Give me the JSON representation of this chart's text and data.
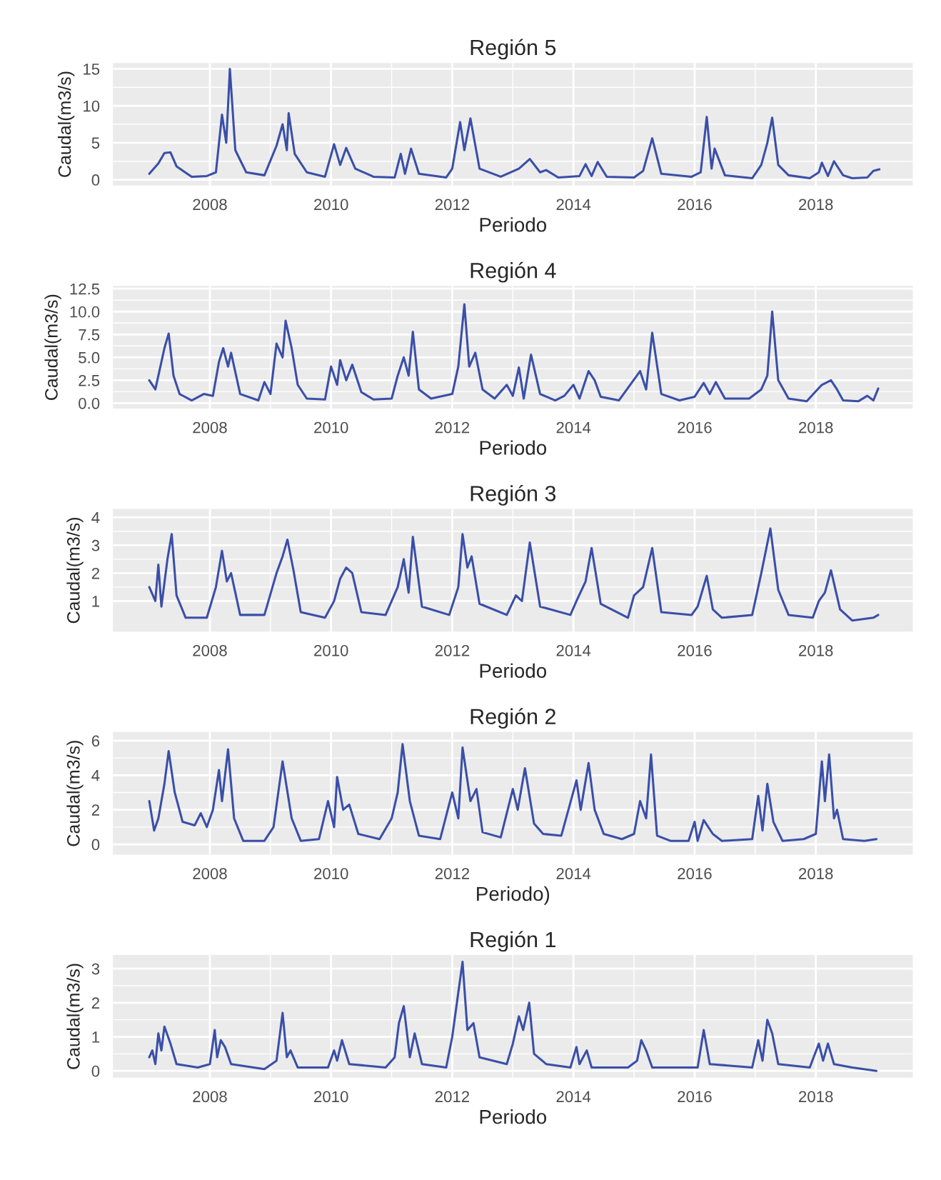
{
  "chart_data": [
    {
      "type": "line",
      "title": "Región 5",
      "xlabel": "Periodo",
      "ylabel": "Caudal(m3/s)",
      "xlim": [
        2006.4,
        2019.6
      ],
      "xticks": [
        2008,
        2010,
        2012,
        2014,
        2016,
        2018
      ],
      "ylim": [
        -0.8,
        15.8
      ],
      "yticks": [
        0,
        5,
        10,
        15
      ],
      "grid": true,
      "x": [
        2007.0,
        2007.15,
        2007.25,
        2007.35,
        2007.45,
        2007.7,
        2007.95,
        2008.1,
        2008.2,
        2008.27,
        2008.33,
        2008.42,
        2008.6,
        2008.9,
        2009.1,
        2009.2,
        2009.27,
        2009.3,
        2009.4,
        2009.6,
        2009.9,
        2010.05,
        2010.15,
        2010.25,
        2010.4,
        2010.7,
        2011.05,
        2011.15,
        2011.22,
        2011.32,
        2011.45,
        2011.9,
        2012.0,
        2012.13,
        2012.2,
        2012.3,
        2012.45,
        2012.8,
        2013.1,
        2013.28,
        2013.45,
        2013.55,
        2013.75,
        2014.1,
        2014.2,
        2014.3,
        2014.4,
        2014.55,
        2015.0,
        2015.15,
        2015.3,
        2015.45,
        2015.95,
        2016.1,
        2016.2,
        2016.28,
        2016.33,
        2016.5,
        2016.95,
        2017.1,
        2017.2,
        2017.28,
        2017.38,
        2017.55,
        2017.9,
        2018.05,
        2018.1,
        2018.2,
        2018.3,
        2018.45,
        2018.6,
        2018.85,
        2018.95,
        2019.05
      ],
      "series": [
        {
          "color": "#3a4fa8",
          "values": [
            0.8,
            2.2,
            3.6,
            3.7,
            1.8,
            0.4,
            0.5,
            1.0,
            8.8,
            5,
            15,
            4,
            1,
            0.6,
            4.6,
            7.5,
            4,
            9,
            3.5,
            1,
            0.4,
            4.8,
            2,
            4.3,
            1.5,
            0.4,
            0.3,
            3.5,
            0.8,
            4.2,
            0.8,
            0.3,
            1.5,
            7.8,
            4,
            8.3,
            1.5,
            0.4,
            1.5,
            2.8,
            1.0,
            1.3,
            0.3,
            0.5,
            2.1,
            0.5,
            2.4,
            0.4,
            0.3,
            1.2,
            5.6,
            0.8,
            0.4,
            1.0,
            8.5,
            1.5,
            4.2,
            0.6,
            0.2,
            2,
            5,
            8.4,
            2,
            0.6,
            0.2,
            1.0,
            2.3,
            0.5,
            2.5,
            0.6,
            0.2,
            0.3,
            1.2,
            1.4
          ]
        }
      ]
    },
    {
      "type": "line",
      "title": "Región 4",
      "xlabel": "Periodo",
      "ylabel": "Caudal(m3/s)",
      "xlim": [
        2006.4,
        2019.6
      ],
      "xticks": [
        2008,
        2010,
        2012,
        2014,
        2016,
        2018
      ],
      "ylim": [
        -0.6,
        12.8
      ],
      "yticks": [
        {
          "value": 0,
          "label": "0.0"
        },
        {
          "value": 2.5,
          "label": "2.5"
        },
        {
          "value": 5,
          "label": "5.0"
        },
        {
          "value": 7.5,
          "label": "7.5"
        },
        {
          "value": 10,
          "label": "10.0"
        },
        {
          "value": 12.5,
          "label": "12.5"
        }
      ],
      "grid": true,
      "x": [
        2007.0,
        2007.1,
        2007.2,
        2007.25,
        2007.32,
        2007.4,
        2007.5,
        2007.7,
        2007.9,
        2008.05,
        2008.15,
        2008.22,
        2008.3,
        2008.35,
        2008.5,
        2008.8,
        2008.9,
        2009.0,
        2009.1,
        2009.2,
        2009.25,
        2009.35,
        2009.45,
        2009.6,
        2009.9,
        2010.0,
        2010.1,
        2010.15,
        2010.25,
        2010.35,
        2010.5,
        2010.7,
        2011.0,
        2011.1,
        2011.2,
        2011.28,
        2011.35,
        2011.45,
        2011.65,
        2012.0,
        2012.1,
        2012.2,
        2012.28,
        2012.38,
        2012.5,
        2012.7,
        2012.9,
        2013.0,
        2013.1,
        2013.18,
        2013.3,
        2013.45,
        2013.7,
        2013.85,
        2014.0,
        2014.1,
        2014.25,
        2014.35,
        2014.45,
        2014.75,
        2015.1,
        2015.2,
        2015.3,
        2015.45,
        2015.75,
        2016.0,
        2016.15,
        2016.25,
        2016.35,
        2016.5,
        2016.9,
        2017.1,
        2017.2,
        2017.28,
        2017.38,
        2017.55,
        2017.85,
        2018.0,
        2018.1,
        2018.25,
        2018.35,
        2018.45,
        2018.7,
        2018.85,
        2018.95,
        2019.03
      ],
      "series": [
        {
          "color": "#3a4fa8",
          "values": [
            2.5,
            1.5,
            4.5,
            6,
            7.6,
            3,
            1.0,
            0.3,
            1.0,
            0.8,
            4.5,
            6,
            4,
            5.5,
            1.0,
            0.3,
            2.3,
            1,
            6.5,
            5,
            9,
            6,
            2,
            0.5,
            0.4,
            4,
            2,
            4.7,
            2.5,
            4.2,
            1.2,
            0.4,
            0.5,
            3,
            5,
            3,
            7.8,
            1.5,
            0.5,
            1,
            4,
            10.8,
            4,
            5.5,
            1.5,
            0.5,
            2.0,
            0.8,
            3.9,
            0.5,
            5.3,
            1,
            0.3,
            0.8,
            2.0,
            0.5,
            3.5,
            2.5,
            0.7,
            0.3,
            3.5,
            1.5,
            7.7,
            1,
            0.3,
            0.7,
            2.2,
            1.0,
            2.3,
            0.5,
            0.5,
            1.5,
            3,
            10,
            2.5,
            0.5,
            0.2,
            1.3,
            2.0,
            2.5,
            1.5,
            0.3,
            0.2,
            0.8,
            0.3,
            1.6
          ]
        }
      ]
    },
    {
      "type": "line",
      "title": "Región 3",
      "xlabel": "Periodo",
      "ylabel": "Caudal(m3/s)",
      "xlim": [
        2006.4,
        2019.6
      ],
      "xticks": [
        2008,
        2010,
        2012,
        2014,
        2016,
        2018
      ],
      "ylim": [
        -0.1,
        4.3
      ],
      "yticks": [
        1,
        2,
        3,
        4
      ],
      "grid": true,
      "x": [
        2007.0,
        2007.1,
        2007.15,
        2007.2,
        2007.3,
        2007.37,
        2007.45,
        2007.6,
        2007.95,
        2008.1,
        2008.2,
        2008.28,
        2008.35,
        2008.5,
        2008.9,
        2009.1,
        2009.2,
        2009.28,
        2009.38,
        2009.5,
        2009.9,
        2010.05,
        2010.15,
        2010.25,
        2010.35,
        2010.5,
        2010.9,
        2011.1,
        2011.2,
        2011.28,
        2011.35,
        2011.5,
        2011.95,
        2012.1,
        2012.17,
        2012.25,
        2012.32,
        2012.45,
        2012.9,
        2013.05,
        2013.15,
        2013.28,
        2013.45,
        2013.95,
        2014.05,
        2014.2,
        2014.3,
        2014.45,
        2014.9,
        2015.0,
        2015.15,
        2015.3,
        2015.45,
        2015.95,
        2016.05,
        2016.2,
        2016.3,
        2016.45,
        2016.95,
        2017.1,
        2017.25,
        2017.38,
        2017.55,
        2017.95,
        2018.05,
        2018.15,
        2018.25,
        2018.4,
        2018.6,
        2018.95,
        2019.03
      ],
      "series": [
        {
          "color": "#3a4fa8",
          "values": [
            1.5,
            1.0,
            2.3,
            0.8,
            2.5,
            3.4,
            1.2,
            0.4,
            0.4,
            1.5,
            2.8,
            1.7,
            2.0,
            0.5,
            0.5,
            2.0,
            2.6,
            3.2,
            2.1,
            0.6,
            0.4,
            1.0,
            1.8,
            2.2,
            2.0,
            0.6,
            0.5,
            1.5,
            2.5,
            1.3,
            3.3,
            0.8,
            0.5,
            1.5,
            3.4,
            2.2,
            2.6,
            0.9,
            0.5,
            1.2,
            1.0,
            3.1,
            0.8,
            0.5,
            1.0,
            1.7,
            2.9,
            0.9,
            0.4,
            1.2,
            1.5,
            2.9,
            0.6,
            0.5,
            0.8,
            1.9,
            0.7,
            0.4,
            0.5,
            2.0,
            3.6,
            1.4,
            0.5,
            0.4,
            1.0,
            1.3,
            2.1,
            0.7,
            0.3,
            0.4,
            0.5
          ]
        }
      ]
    },
    {
      "type": "line",
      "title": "Región 2",
      "xlabel": "Periodo)",
      "ylabel": "Caudal(m3/s)",
      "xlim": [
        2006.4,
        2019.6
      ],
      "xticks": [
        2008,
        2010,
        2012,
        2014,
        2016,
        2018
      ],
      "ylim": [
        -0.6,
        6.5
      ],
      "yticks": [
        0,
        2,
        4,
        6
      ],
      "grid": true,
      "x": [
        2007.0,
        2007.08,
        2007.15,
        2007.25,
        2007.32,
        2007.42,
        2007.55,
        2007.75,
        2007.85,
        2007.95,
        2008.05,
        2008.15,
        2008.2,
        2008.3,
        2008.4,
        2008.55,
        2008.9,
        2009.05,
        2009.2,
        2009.35,
        2009.5,
        2009.8,
        2009.95,
        2010.05,
        2010.1,
        2010.2,
        2010.3,
        2010.45,
        2010.8,
        2011.0,
        2011.1,
        2011.18,
        2011.3,
        2011.45,
        2011.8,
        2012.0,
        2012.1,
        2012.17,
        2012.3,
        2012.4,
        2012.5,
        2012.8,
        2013.0,
        2013.08,
        2013.2,
        2013.35,
        2013.5,
        2013.8,
        2014.05,
        2014.12,
        2014.25,
        2014.35,
        2014.5,
        2014.8,
        2015.0,
        2015.1,
        2015.2,
        2015.28,
        2015.38,
        2015.6,
        2015.9,
        2016.0,
        2016.05,
        2016.15,
        2016.3,
        2016.45,
        2016.95,
        2017.05,
        2017.12,
        2017.2,
        2017.3,
        2017.45,
        2017.8,
        2018.0,
        2018.1,
        2018.15,
        2018.22,
        2018.3,
        2018.35,
        2018.45,
        2018.8,
        2019.0
      ],
      "series": [
        {
          "color": "#3a4fa8",
          "values": [
            2.5,
            0.8,
            1.5,
            3.5,
            5.4,
            3,
            1.3,
            1.1,
            1.8,
            1.0,
            2,
            4.3,
            2.5,
            5.5,
            1.5,
            0.2,
            0.2,
            1.0,
            4.8,
            1.5,
            0.2,
            0.3,
            2.5,
            1,
            3.9,
            2.0,
            2.3,
            0.6,
            0.3,
            1.5,
            3.0,
            5.8,
            2.5,
            0.5,
            0.3,
            3.0,
            1.5,
            5.6,
            2.5,
            3.2,
            0.7,
            0.4,
            3.2,
            2,
            4.4,
            1.2,
            0.6,
            0.5,
            3.7,
            2,
            4.7,
            2.0,
            0.6,
            0.3,
            0.6,
            2.5,
            1.5,
            5.2,
            0.5,
            0.2,
            0.2,
            1.3,
            0.2,
            1.4,
            0.6,
            0.2,
            0.3,
            2.8,
            0.8,
            3.5,
            1.3,
            0.2,
            0.3,
            0.6,
            4.8,
            2.5,
            5.2,
            1.5,
            2.0,
            0.3,
            0.2,
            0.3
          ]
        }
      ]
    },
    {
      "type": "line",
      "title": "Región 1",
      "xlabel": "Periodo",
      "ylabel": "Caudal(m3/s)",
      "xlim": [
        2006.4,
        2019.6
      ],
      "xticks": [
        2008,
        2010,
        2012,
        2014,
        2016,
        2018
      ],
      "ylim": [
        -0.2,
        3.4
      ],
      "yticks": [
        0,
        1,
        2,
        3
      ],
      "grid": true,
      "x": [
        2007.0,
        2007.05,
        2007.1,
        2007.15,
        2007.2,
        2007.25,
        2007.35,
        2007.45,
        2007.8,
        2008.0,
        2008.08,
        2008.12,
        2008.18,
        2008.25,
        2008.35,
        2008.9,
        2009.1,
        2009.2,
        2009.27,
        2009.33,
        2009.45,
        2009.95,
        2010.05,
        2010.1,
        2010.18,
        2010.3,
        2010.9,
        2011.05,
        2011.12,
        2011.2,
        2011.3,
        2011.38,
        2011.5,
        2011.9,
        2012.0,
        2012.1,
        2012.17,
        2012.25,
        2012.35,
        2012.45,
        2012.9,
        2013.0,
        2013.1,
        2013.17,
        2013.27,
        2013.35,
        2013.55,
        2013.95,
        2014.05,
        2014.1,
        2014.22,
        2014.3,
        2014.9,
        2015.05,
        2015.12,
        2015.2,
        2015.3,
        2015.95,
        2016.05,
        2016.15,
        2016.25,
        2016.95,
        2017.05,
        2017.12,
        2017.2,
        2017.28,
        2017.38,
        2017.9,
        2018.05,
        2018.12,
        2018.2,
        2018.3,
        2018.6,
        2019.0
      ],
      "series": [
        {
          "color": "#3a4fa8",
          "values": [
            0.4,
            0.6,
            0.2,
            1.1,
            0.6,
            1.3,
            0.8,
            0.2,
            0.1,
            0.2,
            1.2,
            0.4,
            0.9,
            0.7,
            0.2,
            0.05,
            0.3,
            1.7,
            0.4,
            0.6,
            0.1,
            0.1,
            0.6,
            0.3,
            0.9,
            0.2,
            0.1,
            0.4,
            1.4,
            1.9,
            0.4,
            1.1,
            0.2,
            0.1,
            1.0,
            2.3,
            3.2,
            1.2,
            1.4,
            0.4,
            0.2,
            0.8,
            1.6,
            1.2,
            2.0,
            0.5,
            0.2,
            0.1,
            0.7,
            0.2,
            0.6,
            0.1,
            0.1,
            0.3,
            0.9,
            0.6,
            0.1,
            0.1,
            0.1,
            1.2,
            0.2,
            0.1,
            0.9,
            0.3,
            1.5,
            1.1,
            0.2,
            0.1,
            0.8,
            0.3,
            0.8,
            0.2,
            0.1,
            0.0
          ]
        }
      ]
    }
  ]
}
